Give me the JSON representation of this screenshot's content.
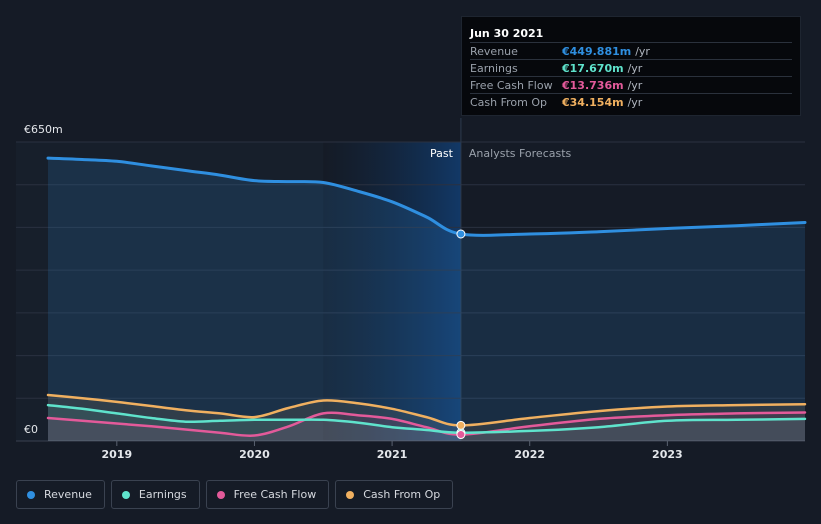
{
  "tooltip": {
    "date": "Jun 30 2021",
    "rows": [
      {
        "label": "Revenue",
        "value": "€449.881m",
        "unit": "/yr",
        "color": "#2f8fe0"
      },
      {
        "label": "Earnings",
        "value": "€17.670m",
        "unit": "/yr",
        "color": "#5fe3cc"
      },
      {
        "label": "Free Cash Flow",
        "value": "€13.736m",
        "unit": "/yr",
        "color": "#e35a9a"
      },
      {
        "label": "Cash From Op",
        "value": "€34.154m",
        "unit": "/yr",
        "color": "#f0b060"
      }
    ]
  },
  "legend": [
    {
      "label": "Revenue",
      "color": "#2f8fe0"
    },
    {
      "label": "Earnings",
      "color": "#5fe3cc"
    },
    {
      "label": "Free Cash Flow",
      "color": "#e35a9a"
    },
    {
      "label": "Cash From Op",
      "color": "#f0b060"
    }
  ],
  "chart_data": {
    "type": "line",
    "y_top_label": "€650m",
    "y_bottom_label": "€0",
    "ylim": [
      0,
      650
    ],
    "xlim": [
      2018.5,
      2024.0
    ],
    "x_ticks": [
      2019,
      2020,
      2021,
      2022,
      2023
    ],
    "past_label": "Past",
    "forecast_label": "Analysts Forecasts",
    "divider_x": 2021.5,
    "highlight_start_x": 2020.5,
    "grid": true,
    "legend_position": "bottom-left",
    "series": [
      {
        "name": "Revenue",
        "color": "#2f8fe0",
        "fill": true,
        "points": [
          [
            2018.5,
            615
          ],
          [
            2018.75,
            612
          ],
          [
            2019.0,
            608
          ],
          [
            2019.25,
            598
          ],
          [
            2019.5,
            588
          ],
          [
            2019.75,
            578
          ],
          [
            2020.0,
            566
          ],
          [
            2020.25,
            564
          ],
          [
            2020.5,
            562
          ],
          [
            2020.75,
            543
          ],
          [
            2021.0,
            520
          ],
          [
            2021.25,
            487
          ],
          [
            2021.5,
            450
          ],
          [
            2022.0,
            450
          ],
          [
            2022.5,
            455
          ],
          [
            2023.0,
            462
          ],
          [
            2023.5,
            468
          ],
          [
            2024.0,
            475
          ]
        ]
      },
      {
        "name": "Earnings",
        "color": "#5fe3cc",
        "fill": false,
        "points": [
          [
            2018.5,
            78
          ],
          [
            2018.75,
            70
          ],
          [
            2019.0,
            60
          ],
          [
            2019.25,
            50
          ],
          [
            2019.5,
            42
          ],
          [
            2019.75,
            44
          ],
          [
            2020.0,
            46
          ],
          [
            2020.25,
            46
          ],
          [
            2020.5,
            46
          ],
          [
            2020.75,
            40
          ],
          [
            2021.0,
            30
          ],
          [
            2021.25,
            24
          ],
          [
            2021.5,
            18
          ],
          [
            2022.0,
            22
          ],
          [
            2022.5,
            30
          ],
          [
            2023.0,
            44
          ],
          [
            2023.5,
            46
          ],
          [
            2024.0,
            48
          ]
        ]
      },
      {
        "name": "Free Cash Flow",
        "color": "#e35a9a",
        "fill": false,
        "points": [
          [
            2018.5,
            50
          ],
          [
            2018.75,
            44
          ],
          [
            2019.0,
            38
          ],
          [
            2019.25,
            32
          ],
          [
            2019.5,
            25
          ],
          [
            2019.75,
            18
          ],
          [
            2020.0,
            12
          ],
          [
            2020.25,
            32
          ],
          [
            2020.5,
            60
          ],
          [
            2020.75,
            56
          ],
          [
            2021.0,
            48
          ],
          [
            2021.25,
            30
          ],
          [
            2021.5,
            14
          ],
          [
            2022.0,
            32
          ],
          [
            2022.5,
            48
          ],
          [
            2023.0,
            56
          ],
          [
            2023.5,
            60
          ],
          [
            2024.0,
            62
          ]
        ]
      },
      {
        "name": "Cash From Op",
        "color": "#f0b060",
        "fill": false,
        "points": [
          [
            2018.5,
            100
          ],
          [
            2018.75,
            93
          ],
          [
            2019.0,
            85
          ],
          [
            2019.25,
            76
          ],
          [
            2019.5,
            67
          ],
          [
            2019.75,
            60
          ],
          [
            2020.0,
            52
          ],
          [
            2020.25,
            72
          ],
          [
            2020.5,
            88
          ],
          [
            2020.75,
            82
          ],
          [
            2021.0,
            70
          ],
          [
            2021.25,
            52
          ],
          [
            2021.5,
            34
          ],
          [
            2022.0,
            50
          ],
          [
            2022.5,
            65
          ],
          [
            2023.0,
            75
          ],
          [
            2023.5,
            78
          ],
          [
            2024.0,
            80
          ]
        ]
      }
    ]
  }
}
